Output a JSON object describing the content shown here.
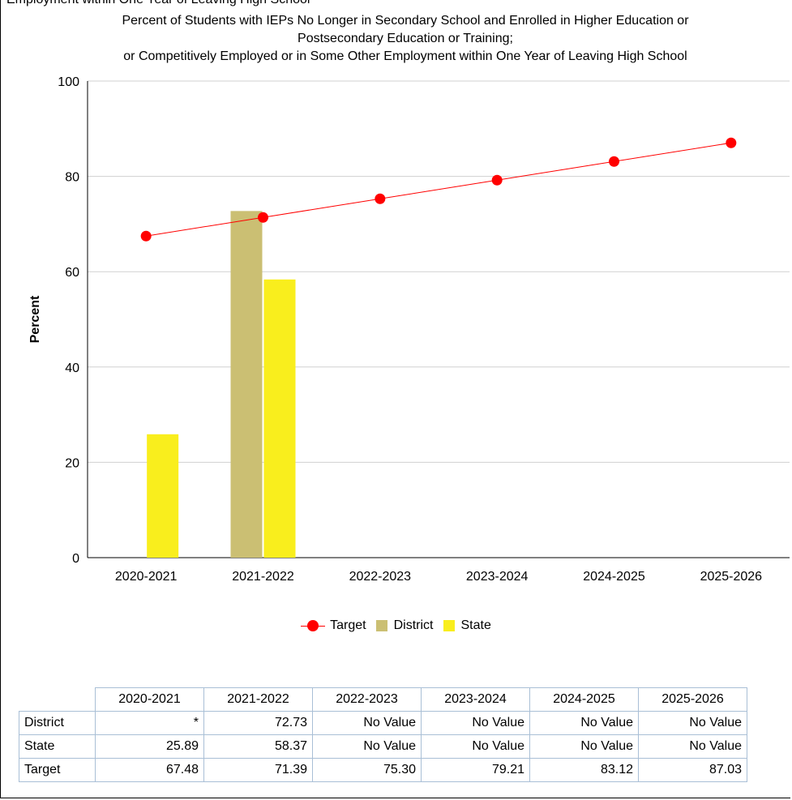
{
  "header_clip": "Employment within One Year of Leaving High School",
  "title_lines": [
    "Percent of Students with IEPs No Longer in Secondary School and Enrolled in Higher Education or",
    "Postsecondary Education or Training;",
    "or Competitively Employed or in Some Other Employment within One Year of Leaving High School"
  ],
  "chart_data": {
    "type": "bar",
    "categories": [
      "2020-2021",
      "2021-2022",
      "2022-2023",
      "2023-2024",
      "2024-2025",
      "2025-2026"
    ],
    "series": [
      {
        "name": "District",
        "kind": "bar",
        "color": "#cbbf73",
        "values": [
          null,
          72.73,
          null,
          null,
          null,
          null
        ]
      },
      {
        "name": "State",
        "kind": "bar",
        "color": "#f9ee1d",
        "values": [
          25.89,
          58.37,
          null,
          null,
          null,
          null
        ]
      },
      {
        "name": "Target",
        "kind": "line",
        "color": "#ff0000",
        "values": [
          67.48,
          71.39,
          75.3,
          79.21,
          83.12,
          87.03
        ]
      }
    ],
    "ylabel": "Percent",
    "ylim": [
      0,
      100
    ],
    "yticks": [
      "0",
      "20",
      "40",
      "60",
      "80",
      "100"
    ],
    "grid": true,
    "legend_position": "bottom"
  },
  "legend": [
    {
      "label": "Target",
      "kind": "line",
      "color": "#ff0000"
    },
    {
      "label": "District",
      "kind": "box",
      "color": "#cbbf73"
    },
    {
      "label": "State",
      "kind": "box",
      "color": "#f9ee1d"
    }
  ],
  "table": {
    "headers": [
      "2020-2021",
      "2021-2022",
      "2022-2023",
      "2023-2024",
      "2024-2025",
      "2025-2026"
    ],
    "rows": [
      {
        "label": "District",
        "values": [
          "*",
          "72.73",
          "No Value",
          "No Value",
          "No Value",
          "No Value"
        ]
      },
      {
        "label": "State",
        "values": [
          "25.89",
          "58.37",
          "No Value",
          "No Value",
          "No Value",
          "No Value"
        ]
      },
      {
        "label": "Target",
        "values": [
          "67.48",
          "71.39",
          "75.30",
          "79.21",
          "83.12",
          "87.03"
        ]
      }
    ]
  }
}
